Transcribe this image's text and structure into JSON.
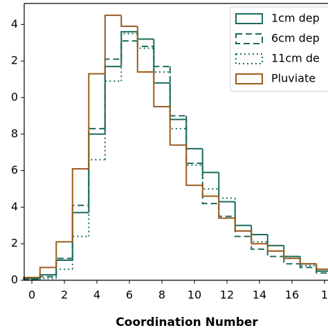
{
  "chart_data": {
    "type": "histogram",
    "xlabel": "Coordination Number",
    "bins": [
      -0.5,
      0.5,
      1.5,
      2.5,
      3.5,
      4.5,
      5.5,
      6.5,
      7.5,
      8.5,
      9.5,
      10.5,
      11.5,
      12.5,
      13.5,
      14.5,
      15.5,
      16.5,
      17.5,
      18.5
    ],
    "series": [
      {
        "name": "1cm dep",
        "color": "#1a6b5e",
        "dash": "solid",
        "values": [
          0.1,
          0.3,
          1.1,
          3.7,
          8.0,
          11.7,
          13.6,
          13.2,
          10.8,
          8.8,
          7.2,
          5.9,
          4.3,
          3.0,
          2.5,
          1.9,
          1.3,
          0.9,
          0.5
        ]
      },
      {
        "name": "6cm dep",
        "color": "#1a6b5e",
        "dash": "dashed",
        "values": [
          0.05,
          0.2,
          1.2,
          4.1,
          8.3,
          12.1,
          13.1,
          12.8,
          11.7,
          9.0,
          6.4,
          4.2,
          3.5,
          2.4,
          1.7,
          1.3,
          0.9,
          0.7,
          0.4
        ]
      },
      {
        "name": "11cm de",
        "color": "#1a6b5e",
        "dash": "dotted",
        "values": [
          0.05,
          0.1,
          0.6,
          2.4,
          6.6,
          10.9,
          13.5,
          12.7,
          11.4,
          8.3,
          6.3,
          5.0,
          4.5,
          2.7,
          2.1,
          1.6,
          1.2,
          0.8,
          0.5
        ]
      },
      {
        "name": "Pluviate",
        "color": "#9c5b1b",
        "dash": "solid",
        "values": [
          0.15,
          0.7,
          2.1,
          6.1,
          11.3,
          14.5,
          13.9,
          11.4,
          9.5,
          7.4,
          5.2,
          4.6,
          3.4,
          2.7,
          2.0,
          1.6,
          1.2,
          0.9,
          0.6
        ]
      }
    ],
    "xlim": [
      -0.47,
      18.3
    ],
    "ylim": [
      0,
      15.15
    ],
    "xticks": [
      0,
      2,
      4,
      6,
      8,
      10,
      12,
      14,
      16,
      {
        "value": 18,
        "label": "1"
      }
    ],
    "yticks": [
      0,
      2,
      4,
      6,
      8,
      {
        "value": 10,
        "label": "0"
      },
      {
        "value": 12,
        "label": "2"
      },
      {
        "value": 14,
        "label": "4"
      }
    ],
    "legend": "upper right"
  }
}
